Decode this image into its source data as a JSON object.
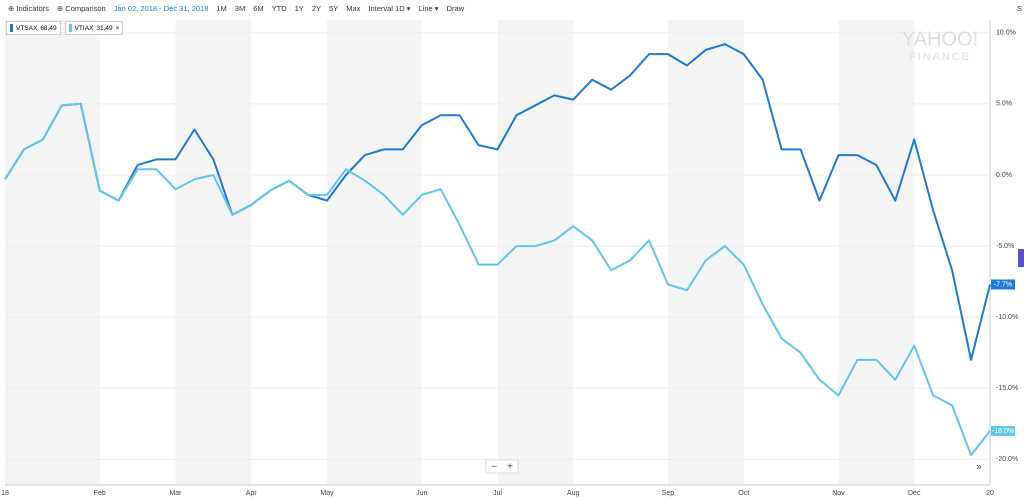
{
  "toolbar": {
    "indicators": "Indicators",
    "comparison": "Comparison",
    "date_range": "Jan 02, 2018 - Dec 31, 2018",
    "ranges": [
      "1M",
      "3M",
      "6M",
      "YTD",
      "1Y",
      "2Y",
      "5Y",
      "Max"
    ],
    "interval": "Interval",
    "interval_value": "1D",
    "chart_type": "Line",
    "draw": "Draw",
    "settings": "S"
  },
  "watermark": {
    "brand": "YAHOO!",
    "product": "FINANCE"
  },
  "zoom": {
    "minus": "−",
    "plus": "+",
    "more": "»"
  },
  "close_icon": "×",
  "chart_data": {
    "type": "line",
    "categories": [
      "18",
      null,
      null,
      null,
      null,
      "Feb",
      null,
      null,
      null,
      "Mar",
      null,
      null,
      null,
      "Apr",
      null,
      null,
      null,
      "May",
      null,
      null,
      null,
      null,
      "Jun",
      null,
      null,
      null,
      "Jul",
      null,
      null,
      null,
      "Aug",
      null,
      null,
      null,
      null,
      "Sep",
      null,
      null,
      null,
      "Oct",
      null,
      null,
      null,
      null,
      "Nov",
      null,
      null,
      null,
      "Dec",
      null,
      null,
      null,
      "20"
    ],
    "series": [
      {
        "name": "VTSAX",
        "price": 68.49,
        "color": "#1e7ad6",
        "values": [
          -0.3,
          1.8,
          2.5,
          4.9,
          5.0,
          -1.1,
          -1.8,
          0.7,
          1.1,
          1.1,
          3.2,
          1.1,
          -2.8,
          -2.1,
          -1.1,
          -0.4,
          -1.4,
          -1.8,
          0,
          1.4,
          1.8,
          1.8,
          3.5,
          4.2,
          4.2,
          2.1,
          1.8,
          4.2,
          4.9,
          5.6,
          5.3,
          6.7,
          6.0,
          7.0,
          8.5,
          8.5,
          7.7,
          8.8,
          9.2,
          8.5,
          6.7,
          1.8,
          1.8,
          -1.8,
          1.4,
          1.4,
          0.7,
          -1.8,
          2.5,
          -2.5,
          -6.7,
          -13.0,
          -7.7
        ],
        "value_labels": [
          null,
          null,
          null,
          null,
          null,
          null,
          null,
          null,
          null,
          null,
          null,
          null,
          null,
          null,
          null,
          null,
          null,
          null,
          null,
          null,
          null,
          null,
          null,
          null,
          null,
          null,
          null,
          null,
          null,
          null,
          null,
          null,
          null,
          null,
          null,
          null,
          null,
          null,
          null,
          null,
          null,
          null,
          null,
          null,
          null,
          null,
          null,
          null,
          null,
          null,
          null,
          null,
          "-7.7%"
        ]
      },
      {
        "name": "VTIAX",
        "price": 31.49,
        "color": "#63c5ee",
        "values": [
          -0.3,
          1.8,
          2.5,
          4.9,
          5.0,
          -1.1,
          -1.8,
          0.4,
          0.4,
          -1.0,
          -0.3,
          0,
          -2.8,
          -2.1,
          -1.1,
          -0.4,
          -1.4,
          -1.4,
          0.4,
          -0.4,
          -1.4,
          -2.8,
          -1.4,
          -1.0,
          -3.5,
          -6.3,
          -6.3,
          -5.0,
          -5.0,
          -4.6,
          -3.6,
          -4.6,
          -6.7,
          -6.0,
          -4.6,
          -7.7,
          -8.1,
          -6.0,
          -5.0,
          -6.3,
          -9.1,
          -11.5,
          -12.5,
          -14.4,
          -15.5,
          -13.0,
          -13.0,
          -14.4,
          -12.0,
          -15.5,
          -16.2,
          -19.7,
          -18.0
        ],
        "value_labels": [
          null,
          null,
          null,
          null,
          null,
          null,
          null,
          null,
          null,
          null,
          null,
          null,
          null,
          null,
          null,
          null,
          null,
          null,
          null,
          null,
          null,
          null,
          null,
          null,
          null,
          null,
          null,
          null,
          null,
          null,
          null,
          null,
          null,
          null,
          null,
          null,
          null,
          null,
          null,
          null,
          null,
          null,
          null,
          null,
          null,
          null,
          null,
          null,
          null,
          null,
          null,
          null,
          "-18.0%"
        ]
      }
    ],
    "ylim": [
      -21.8,
      10.9
    ],
    "yticks": [
      {
        "value": -20,
        "label": "-20.0%"
      },
      {
        "value": -15,
        "label": "-15.0%"
      },
      {
        "value": -10,
        "label": "-10.0%"
      },
      {
        "value": -5,
        "label": "-5.0%"
      },
      {
        "value": 0,
        "label": "0.0%"
      },
      {
        "value": 5,
        "label": "5.0%"
      },
      {
        "value": 10,
        "label": "10.0%"
      }
    ],
    "grid": true
  }
}
